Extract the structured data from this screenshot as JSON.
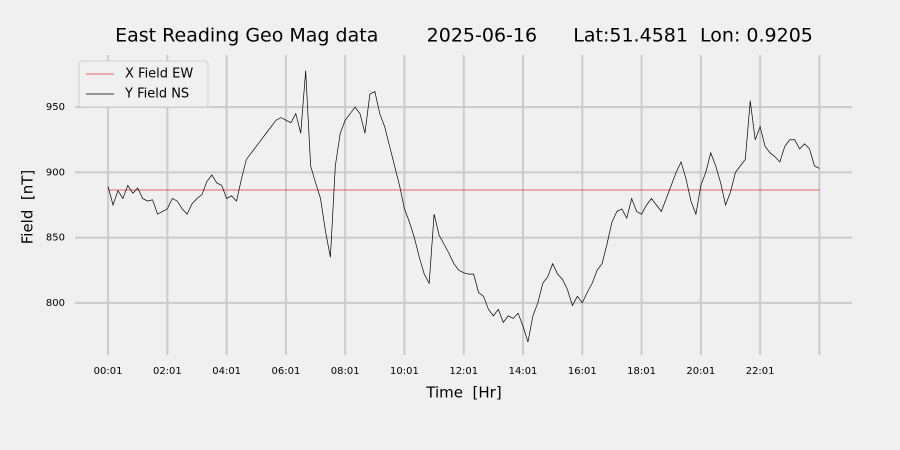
{
  "chart_data": {
    "type": "line",
    "title": "East Reading Geo Mag data        2025-06-16      Lat:51.4581  Lon: 0.9205",
    "x_label": "Time  [Hr]",
    "y_label": "Field  [nT]",
    "xlim": [
      -66,
      1507
    ],
    "ylim": [
      760,
      990
    ],
    "xticks": [
      {
        "value": 1,
        "label": "00:01"
      },
      {
        "value": 121,
        "label": "02:01"
      },
      {
        "value": 241,
        "label": "04:01"
      },
      {
        "value": 361,
        "label": "06:01"
      },
      {
        "value": 481,
        "label": "08:01"
      },
      {
        "value": 601,
        "label": "10:01"
      },
      {
        "value": 721,
        "label": "12:01"
      },
      {
        "value": 841,
        "label": "14:01"
      },
      {
        "value": 961,
        "label": "16:01"
      },
      {
        "value": 1081,
        "label": "18:01"
      },
      {
        "value": 1201,
        "label": "20:01"
      },
      {
        "value": 1321,
        "label": "22:01"
      },
      {
        "value": 1441,
        "label": null
      }
    ],
    "yticks": [
      800,
      850,
      900,
      950
    ],
    "grid": true,
    "legend": "upper left",
    "x": [
      1,
      11,
      21,
      31,
      41,
      51,
      61,
      71,
      81,
      91,
      101,
      111,
      121,
      131,
      141,
      151,
      161,
      171,
      181,
      191,
      201,
      211,
      221,
      231,
      241,
      251,
      261,
      271,
      281,
      291,
      301,
      311,
      321,
      331,
      341,
      351,
      361,
      371,
      381,
      391,
      401,
      411,
      421,
      431,
      441,
      451,
      461,
      471,
      481,
      491,
      501,
      511,
      521,
      531,
      541,
      551,
      561,
      571,
      581,
      591,
      601,
      611,
      621,
      631,
      641,
      651,
      661,
      671,
      681,
      691,
      701,
      711,
      721,
      731,
      741,
      751,
      761,
      771,
      781,
      791,
      801,
      811,
      821,
      831,
      841,
      851,
      861,
      871,
      881,
      891,
      901,
      911,
      921,
      931,
      941,
      951,
      961,
      971,
      981,
      991,
      1001,
      1011,
      1021,
      1031,
      1041,
      1051,
      1061,
      1071,
      1081,
      1091,
      1101,
      1111,
      1121,
      1131,
      1141,
      1151,
      1161,
      1171,
      1181,
      1191,
      1201,
      1211,
      1221,
      1231,
      1241,
      1251,
      1261,
      1271,
      1281,
      1291,
      1301,
      1311,
      1321,
      1331,
      1341,
      1351,
      1361,
      1371,
      1381,
      1391,
      1401,
      1411,
      1421,
      1431,
      1441
    ],
    "series": [
      {
        "name": "X Field EW",
        "color": "#e8312f",
        "x": [
          1,
          1441
        ],
        "values": [
          886.5,
          886.5
        ]
      },
      {
        "name": "Y Field NS",
        "color": "#000000",
        "values": [
          889,
          875,
          886,
          880,
          890,
          884,
          888,
          880,
          878,
          879,
          868,
          870,
          872,
          880,
          878,
          872,
          868,
          876,
          880,
          883,
          893,
          898,
          892,
          890,
          880,
          882,
          878,
          895,
          910,
          915,
          920,
          925,
          930,
          935,
          940,
          942,
          940,
          938,
          945,
          930,
          978,
          905,
          892,
          880,
          855,
          835,
          905,
          930,
          940,
          945,
          950,
          945,
          930,
          960,
          962,
          945,
          935,
          920,
          905,
          890,
          872,
          862,
          850,
          835,
          822,
          815,
          868,
          852,
          845,
          838,
          830,
          825,
          823,
          822,
          822,
          808,
          805,
          795,
          790,
          795,
          785,
          790,
          788,
          792,
          782,
          770,
          790,
          800,
          815,
          820,
          830,
          822,
          818,
          810,
          798,
          805,
          800,
          808,
          815,
          825,
          830,
          845,
          862,
          870,
          872,
          865,
          880,
          870,
          868,
          875,
          880,
          875,
          870,
          880,
          890,
          900,
          908,
          895,
          878,
          868,
          890,
          900,
          915,
          905,
          892,
          875,
          885,
          900,
          905,
          910,
          955,
          925,
          935,
          920,
          915,
          912,
          908,
          920,
          925,
          925,
          918,
          922,
          918,
          905,
          903
        ]
      }
    ]
  }
}
